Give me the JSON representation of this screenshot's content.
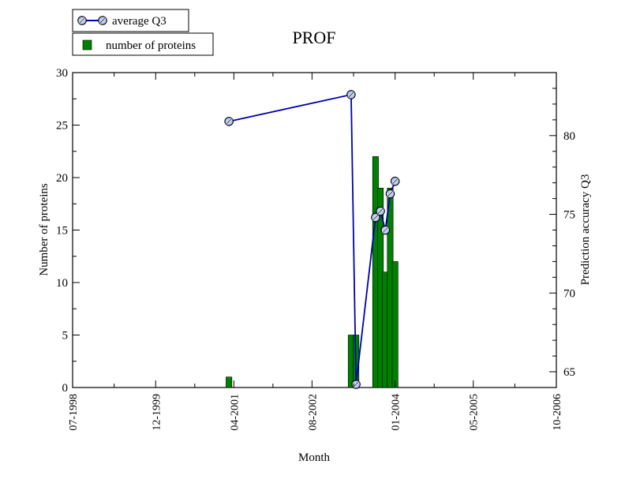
{
  "chart_data": {
    "title": "PROF",
    "type": "bar",
    "xlabel": "Month",
    "ylabel_left": "Number of proteins",
    "ylabel_right": "Prediction accuracy Q3",
    "x_ticks": [
      "07-1998",
      "12-1999",
      "04-2001",
      "08-2002",
      "01-2004",
      "05-2005",
      "10-2006"
    ],
    "y_left_ticks": [
      "0",
      "5",
      "10",
      "15",
      "20",
      "25",
      "30"
    ],
    "y_right_ticks": [
      "65",
      "70",
      "75",
      "80"
    ],
    "x_range": [
      "1998-07",
      "2006-10"
    ],
    "ylim_left": [
      0,
      30
    ],
    "ylim_right": [
      64,
      84
    ],
    "grid": false,
    "legend_position": "top-left, outside plot area",
    "colors": {
      "bars": "#008000",
      "line": "#0000b0",
      "marker_fill": "#b8c8ff"
    },
    "series": [
      {
        "name": "number of proteins",
        "type": "bar",
        "axis": "left",
        "x": [
          "2001-03",
          "2003-04",
          "2003-05",
          "2003-09",
          "2003-10",
          "2003-11",
          "2003-12",
          "2004-01"
        ],
        "values": [
          1,
          5,
          5,
          22,
          19,
          11,
          19,
          12
        ]
      },
      {
        "name": "average Q3",
        "type": "line",
        "axis": "right",
        "x": [
          "2001-03",
          "2003-04",
          "2003-05",
          "2003-09",
          "2003-10",
          "2003-11",
          "2003-12",
          "2004-01"
        ],
        "values": [
          80.9,
          82.6,
          64.2,
          74.8,
          75.2,
          74.0,
          76.3,
          77.1
        ]
      }
    ]
  }
}
